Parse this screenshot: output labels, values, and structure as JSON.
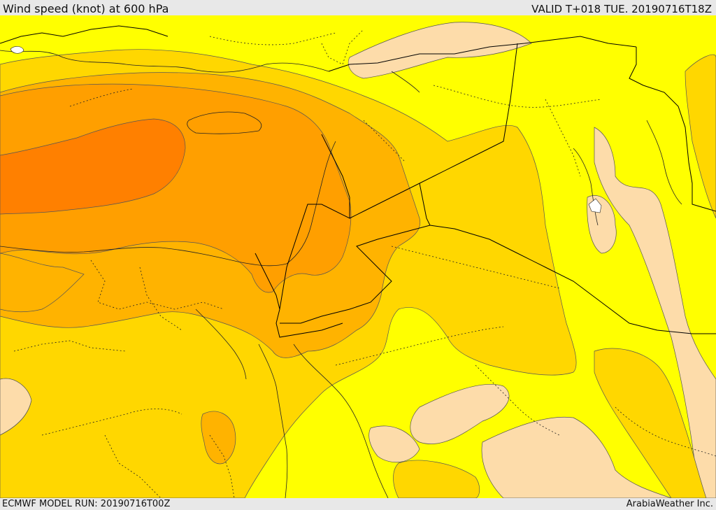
{
  "header": {
    "title": "Wind speed (knot) at 600 hPa",
    "valid": "VALID T+018 TUE. 20190716T18Z"
  },
  "footer": {
    "model_run": "ECMWF MODEL RUN: 20190716T00Z",
    "credit": "ArabiaWeather Inc."
  },
  "colors": {
    "light_tan": "#fddcaa",
    "yellow": "#ffff00",
    "gold": "#ffd700",
    "amber": "#ffb300",
    "orange": "#ff9f00",
    "dark_orange": "#ff8000",
    "contour": "#555555",
    "border": "#000000",
    "lake": "#ffffff"
  }
}
